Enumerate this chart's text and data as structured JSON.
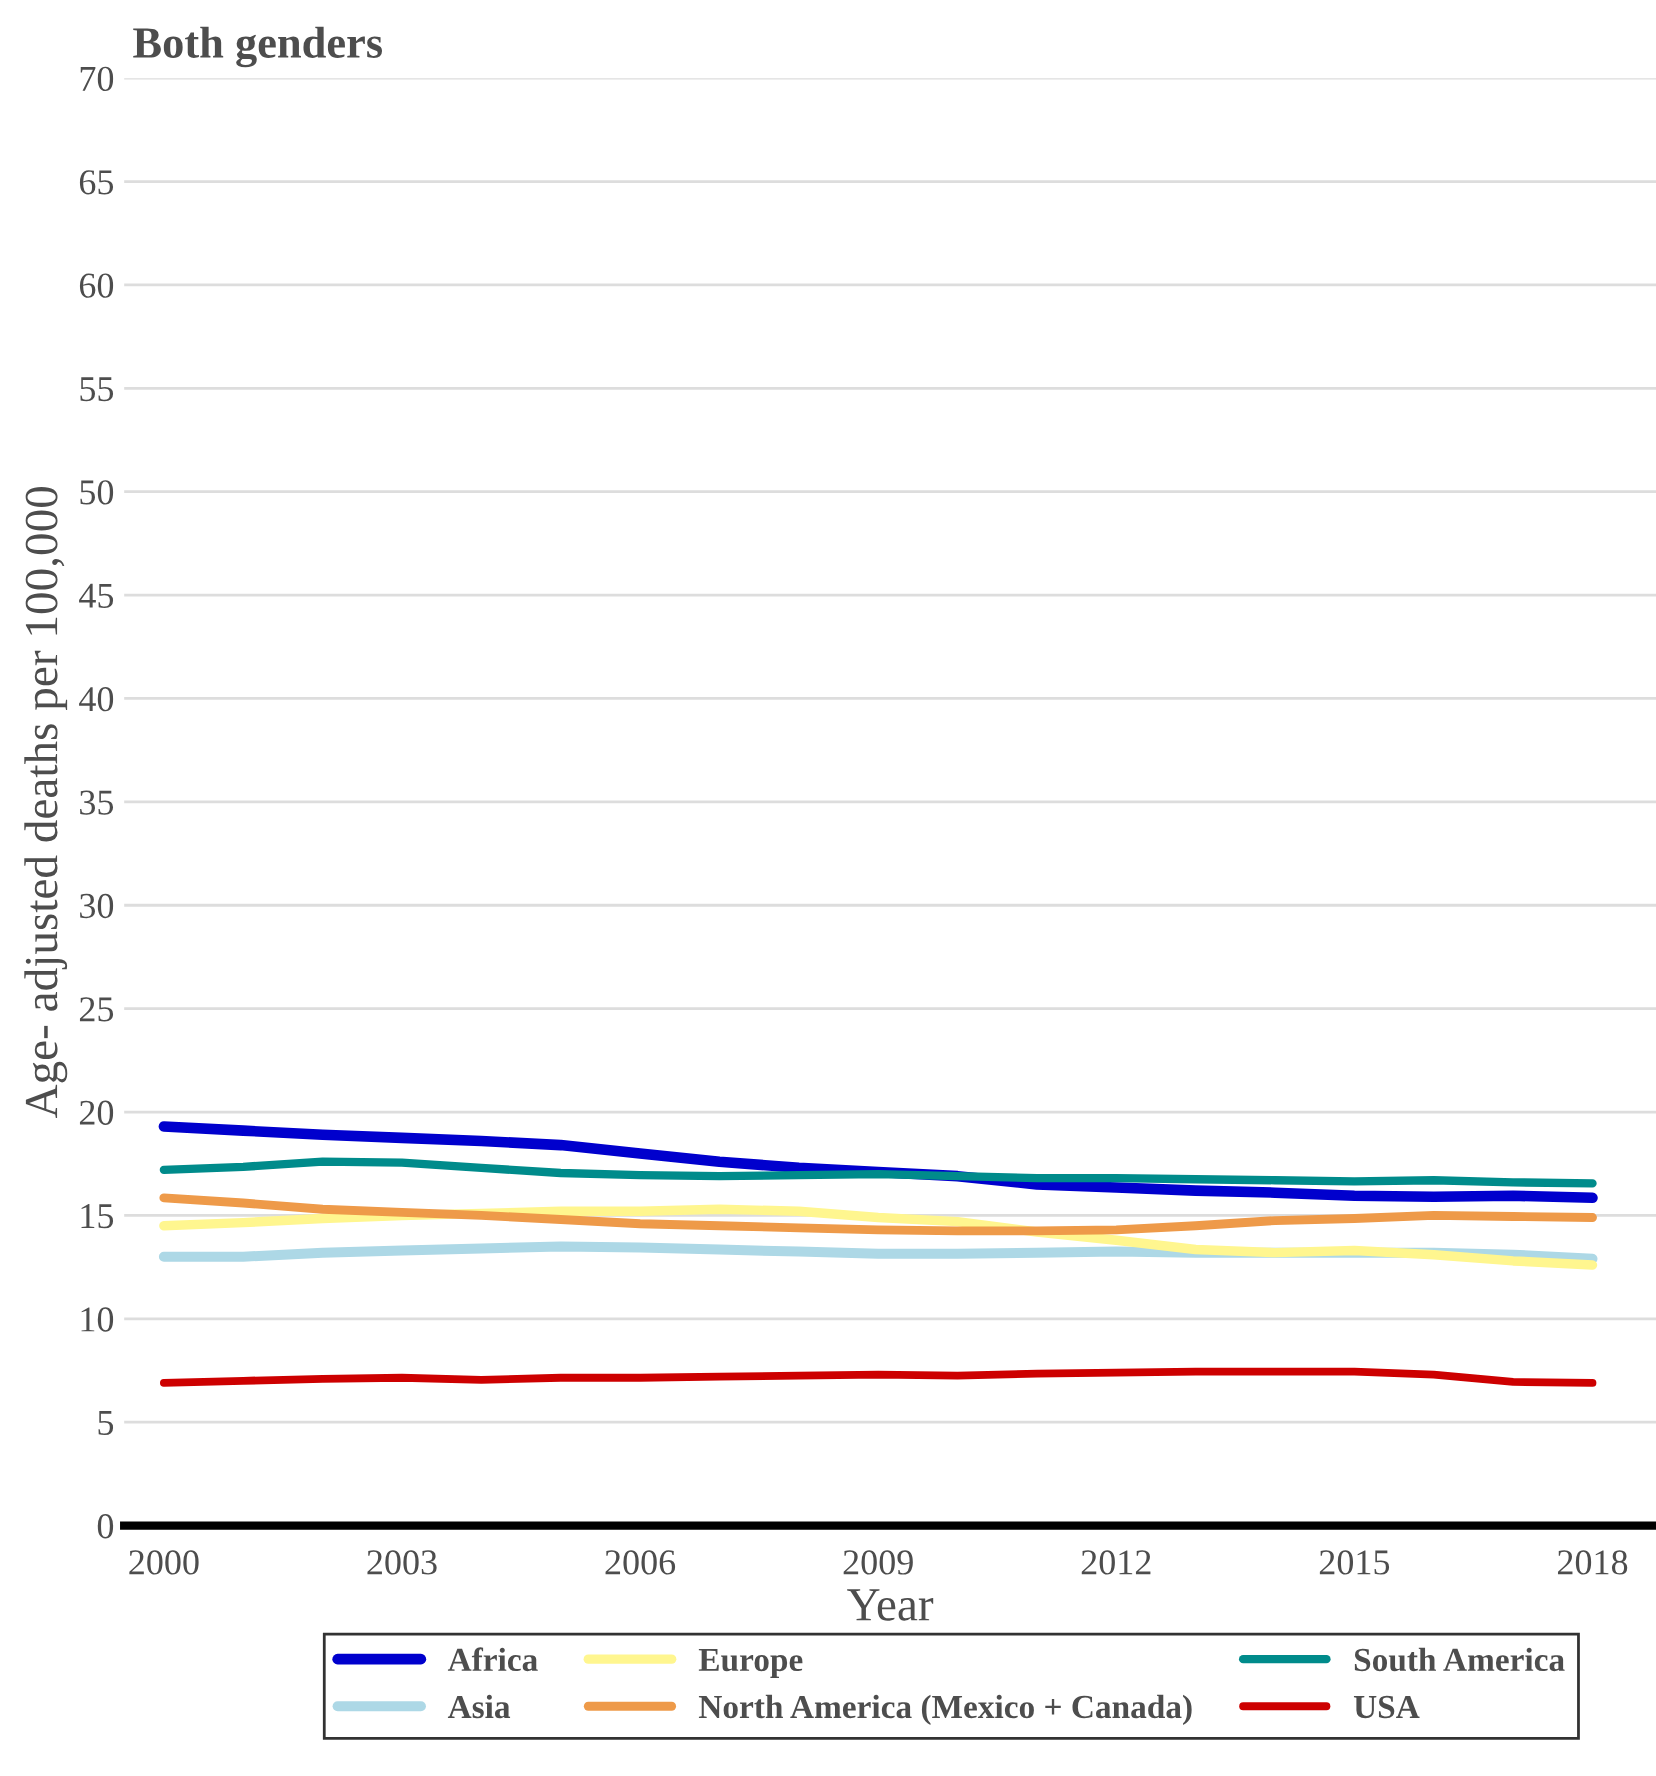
{
  "chart_data": {
    "type": "line",
    "title": "Both genders",
    "xlabel": "Year",
    "ylabel": "Age- adjusted deaths per 100,000",
    "x": [
      2000,
      2001,
      2002,
      2003,
      2004,
      2005,
      2006,
      2007,
      2008,
      2009,
      2010,
      2011,
      2012,
      2013,
      2014,
      2015,
      2016,
      2017,
      2018
    ],
    "series": [
      {
        "name": "Africa",
        "color": "#0000cd",
        "values": [
          19.3,
          19.1,
          18.9,
          18.75,
          18.6,
          18.4,
          18.0,
          17.6,
          17.3,
          17.1,
          16.9,
          16.5,
          16.35,
          16.2,
          16.1,
          15.95,
          15.9,
          15.95,
          15.85
        ]
      },
      {
        "name": "Asia",
        "color": "#add8e6",
        "values": [
          13.0,
          13.0,
          13.2,
          13.3,
          13.4,
          13.5,
          13.45,
          13.35,
          13.25,
          13.15,
          13.15,
          13.2,
          13.25,
          13.2,
          13.2,
          13.2,
          13.2,
          13.1,
          12.9
        ]
      },
      {
        "name": "Europe",
        "color": "#fff68f",
        "values": [
          14.5,
          14.65,
          14.85,
          15.0,
          15.1,
          15.2,
          15.2,
          15.3,
          15.2,
          14.9,
          14.7,
          14.2,
          13.8,
          13.35,
          13.2,
          13.3,
          13.1,
          12.8,
          12.6
        ]
      },
      {
        "name": "North America (Mexico + Canada)",
        "color": "#ee9a49",
        "values": [
          15.85,
          15.6,
          15.3,
          15.15,
          15.0,
          14.8,
          14.6,
          14.5,
          14.4,
          14.3,
          14.25,
          14.25,
          14.3,
          14.5,
          14.75,
          14.85,
          15.0,
          14.95,
          14.9
        ]
      },
      {
        "name": "South America",
        "color": "#008b8b",
        "values": [
          17.2,
          17.35,
          17.6,
          17.55,
          17.3,
          17.05,
          16.95,
          16.9,
          16.95,
          17.0,
          16.9,
          16.8,
          16.8,
          16.75,
          16.7,
          16.65,
          16.7,
          16.6,
          16.55
        ]
      },
      {
        "name": "USA",
        "color": "#cd0000",
        "values": [
          6.9,
          7.0,
          7.1,
          7.15,
          7.05,
          7.15,
          7.15,
          7.2,
          7.25,
          7.3,
          7.25,
          7.35,
          7.4,
          7.45,
          7.45,
          7.45,
          7.3,
          6.95,
          6.9
        ]
      }
    ],
    "xlim": [
      1999.5,
      2018.8
    ],
    "xticks": [
      2000,
      2003,
      2006,
      2009,
      2012,
      2015,
      2018
    ],
    "ylim": [
      0,
      70
    ],
    "yticks": [
      0,
      5,
      10,
      15,
      20,
      25,
      30,
      35,
      40,
      45,
      50,
      55,
      60,
      65,
      70
    ],
    "grid": "y",
    "legend": "bottom",
    "line_style": "solid",
    "marker": "none"
  }
}
